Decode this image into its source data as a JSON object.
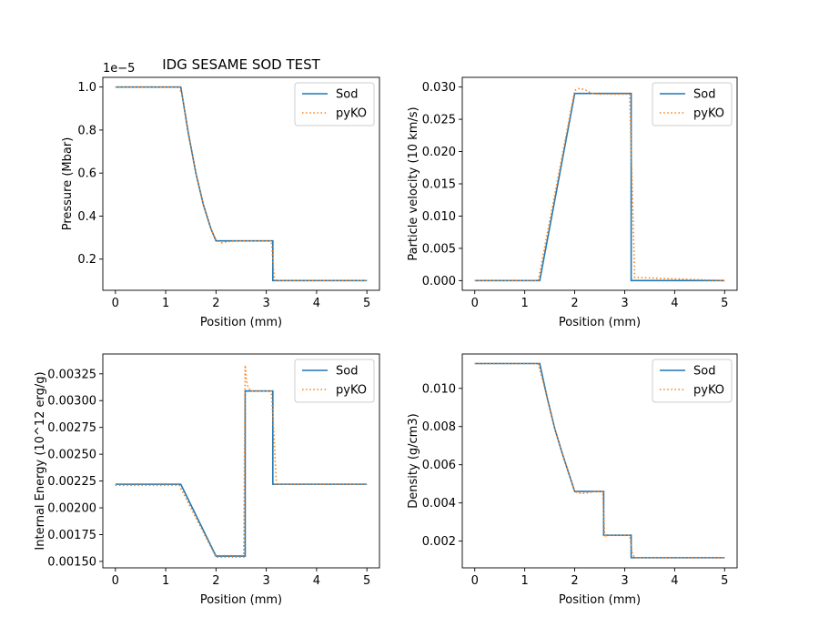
{
  "figure": {
    "title": "IDG SESAME SOD TEST"
  },
  "chart_data": [
    {
      "type": "line",
      "title": "IDG SESAME SOD TEST",
      "xlabel": "Position (mm)",
      "ylabel": "Pressure (Mbar)",
      "offset_label": "1e−5",
      "xlim": [
        -0.25,
        5.25
      ],
      "ylim": [
        0.055,
        1.045
      ],
      "xticks": [
        0,
        1,
        2,
        3,
        4,
        5
      ],
      "xtick_labels": [
        "0",
        "1",
        "2",
        "3",
        "4",
        "5"
      ],
      "yticks": [
        0.2,
        0.4,
        0.6,
        0.8,
        1.0
      ],
      "ytick_labels": [
        "0.2",
        "0.4",
        "0.6",
        "0.8",
        "1.0"
      ],
      "legend": {
        "placement": "upper right",
        "entries": [
          "Sod",
          "pyKO"
        ]
      },
      "series": [
        {
          "name": "Sod",
          "color": "#1f77b4",
          "style": "solid",
          "x": [
            0,
            1.3,
            1.45,
            1.6,
            1.75,
            1.9,
            2.0,
            3.13,
            3.13,
            5.0
          ],
          "y": [
            1.0,
            1.0,
            0.786,
            0.6,
            0.452,
            0.34,
            0.285,
            0.285,
            0.1,
            0.1
          ]
        },
        {
          "name": "pyKO",
          "color": "#ff7f0e",
          "style": "dotted",
          "x": [
            0,
            1.27,
            1.33,
            1.45,
            1.6,
            1.75,
            1.9,
            2.0,
            2.1,
            2.2,
            2.4,
            3.1,
            3.13,
            3.16,
            3.2,
            5.0
          ],
          "y": [
            1.0,
            1.0,
            0.96,
            0.78,
            0.6,
            0.45,
            0.34,
            0.29,
            0.275,
            0.28,
            0.285,
            0.285,
            0.2,
            0.11,
            0.1,
            0.1
          ]
        }
      ]
    },
    {
      "type": "line",
      "title": "",
      "xlabel": "Position (mm)",
      "ylabel": "Particle velocity (10 km/s)",
      "offset_label": "",
      "xlim": [
        -0.25,
        5.25
      ],
      "ylim": [
        -0.0015,
        0.0315
      ],
      "xticks": [
        0,
        1,
        2,
        3,
        4,
        5
      ],
      "xtick_labels": [
        "0",
        "1",
        "2",
        "3",
        "4",
        "5"
      ],
      "yticks": [
        0.0,
        0.005,
        0.01,
        0.015,
        0.02,
        0.025,
        0.03
      ],
      "ytick_labels": [
        "0.000",
        "0.005",
        "0.010",
        "0.015",
        "0.020",
        "0.025",
        "0.030"
      ],
      "legend": {
        "placement": "upper right",
        "entries": [
          "Sod",
          "pyKO"
        ]
      },
      "series": [
        {
          "name": "Sod",
          "color": "#1f77b4",
          "style": "solid",
          "x": [
            0,
            1.3,
            2.0,
            3.13,
            3.13,
            5.0
          ],
          "y": [
            0,
            0,
            0.029,
            0.029,
            0,
            0
          ]
        },
        {
          "name": "pyKO",
          "color": "#ff7f0e",
          "style": "dotted",
          "x": [
            0,
            1.27,
            2.0,
            2.1,
            2.2,
            2.35,
            2.5,
            3.1,
            3.15,
            3.2,
            5.0
          ],
          "y": [
            0,
            0,
            0.0295,
            0.0298,
            0.0296,
            0.029,
            0.0289,
            0.0289,
            0.015,
            0.0005,
            0
          ]
        }
      ]
    },
    {
      "type": "line",
      "title": "",
      "xlabel": "Position (mm)",
      "ylabel": "Internal Energy (10^12 erg/g)",
      "offset_label": "",
      "xlim": [
        -0.25,
        5.25
      ],
      "ylim": [
        0.00144,
        0.003435
      ],
      "xticks": [
        0,
        1,
        2,
        3,
        4,
        5
      ],
      "xtick_labels": [
        "0",
        "1",
        "2",
        "3",
        "4",
        "5"
      ],
      "yticks": [
        0.0015,
        0.00175,
        0.002,
        0.00225,
        0.0025,
        0.00275,
        0.003,
        0.00325
      ],
      "ytick_labels": [
        "0.00150",
        "0.00175",
        "0.00200",
        "0.00225",
        "0.00250",
        "0.00275",
        "0.00300",
        "0.00325"
      ],
      "legend": {
        "placement": "upper right",
        "entries": [
          "Sod",
          "pyKO"
        ]
      },
      "series": [
        {
          "name": "Sod",
          "color": "#1f77b4",
          "style": "solid",
          "x": [
            0,
            1.3,
            2.0,
            2.58,
            2.58,
            3.13,
            3.13,
            5.0
          ],
          "y": [
            0.00222,
            0.00222,
            0.00155,
            0.00155,
            0.00309,
            0.00309,
            0.00222,
            0.00222
          ]
        },
        {
          "name": "pyKO",
          "color": "#ff7f0e",
          "style": "dotted",
          "x": [
            0,
            1.27,
            2.0,
            2.55,
            2.58,
            2.6,
            2.64,
            2.7,
            3.1,
            3.15,
            3.2,
            5.0
          ],
          "y": [
            0.00221,
            0.00221,
            0.00154,
            0.00154,
            0.00333,
            0.0032,
            0.00312,
            0.00309,
            0.00309,
            0.0027,
            0.00222,
            0.00222
          ]
        }
      ]
    },
    {
      "type": "line",
      "title": "",
      "xlabel": "Position (mm)",
      "ylabel": "Density (g/cm3)",
      "offset_label": "",
      "xlim": [
        -0.25,
        5.25
      ],
      "ylim": [
        0.0006,
        0.0118
      ],
      "xticks": [
        0,
        1,
        2,
        3,
        4,
        5
      ],
      "xtick_labels": [
        "0",
        "1",
        "2",
        "3",
        "4",
        "5"
      ],
      "yticks": [
        0.002,
        0.004,
        0.006,
        0.008,
        0.01
      ],
      "ytick_labels": [
        "0.002",
        "0.004",
        "0.006",
        "0.008",
        "0.010"
      ],
      "legend": {
        "placement": "upper right",
        "entries": [
          "Sod",
          "pyKO"
        ]
      },
      "series": [
        {
          "name": "Sod",
          "color": "#1f77b4",
          "style": "solid",
          "x": [
            0,
            1.3,
            1.45,
            1.6,
            1.75,
            1.9,
            2.0,
            2.58,
            2.58,
            3.13,
            3.13,
            5.0
          ],
          "y": [
            0.0113,
            0.0113,
            0.0095,
            0.0079,
            0.0066,
            0.0054,
            0.0046,
            0.0046,
            0.00231,
            0.00231,
            0.00113,
            0.00113
          ]
        },
        {
          "name": "pyKO",
          "color": "#ff7f0e",
          "style": "dotted",
          "x": [
            0,
            1.27,
            1.45,
            1.6,
            1.75,
            1.9,
            2.0,
            2.1,
            2.2,
            2.4,
            2.56,
            2.6,
            2.64,
            3.1,
            3.15,
            3.2,
            5.0
          ],
          "y": [
            0.0113,
            0.0113,
            0.0095,
            0.0079,
            0.0066,
            0.0054,
            0.0046,
            0.0045,
            0.0045,
            0.0046,
            0.0046,
            0.0022,
            0.0023,
            0.0023,
            0.0014,
            0.00113,
            0.00113
          ]
        }
      ]
    }
  ]
}
